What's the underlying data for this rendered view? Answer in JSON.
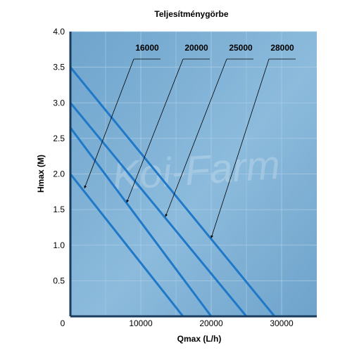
{
  "chart_data": {
    "type": "line",
    "title": "Teljesítménygörbe",
    "xlabel": "Qmax (L/h)",
    "ylabel": "Hmax (M)",
    "xlim": [
      0,
      35000
    ],
    "ylim": [
      0,
      4.0
    ],
    "x_ticks": [
      "0",
      "10000",
      "20000",
      "30000"
    ],
    "x_tick_values": [
      0,
      10000,
      20000,
      30000
    ],
    "y_ticks": [
      "0.5",
      "1.0",
      "1.5",
      "2.0",
      "2.5",
      "3.0",
      "3.5",
      "4.0"
    ],
    "y_tick_values": [
      0.5,
      1.0,
      1.5,
      2.0,
      2.5,
      3.0,
      3.5,
      4.0
    ],
    "grid": true,
    "series": [
      {
        "name": "16000",
        "x": [
          0,
          16000
        ],
        "y": [
          2.0,
          0
        ]
      },
      {
        "name": "20000",
        "x": [
          0,
          20000
        ],
        "y": [
          2.65,
          0
        ]
      },
      {
        "name": "25000",
        "x": [
          0,
          25000
        ],
        "y": [
          3.0,
          0
        ]
      },
      {
        "name": "28000",
        "x": [
          0,
          29000
        ],
        "y": [
          3.5,
          0
        ]
      }
    ],
    "annotations": [
      {
        "label": "16000",
        "target_x": 2000,
        "target_y": 1.8
      },
      {
        "label": "20000",
        "target_x": 8000,
        "target_y": 1.6
      },
      {
        "label": "25000",
        "target_x": 13500,
        "target_y": 1.4
      },
      {
        "label": "28000",
        "target_x": 20000,
        "target_y": 1.1
      }
    ],
    "watermark": "Koi-Farm",
    "colors": {
      "plot_bg": "#7aaed3",
      "line": "#1f78c8",
      "axis": "#1a3c5e",
      "grid": "#a9cbe6",
      "text": "#000000"
    }
  }
}
